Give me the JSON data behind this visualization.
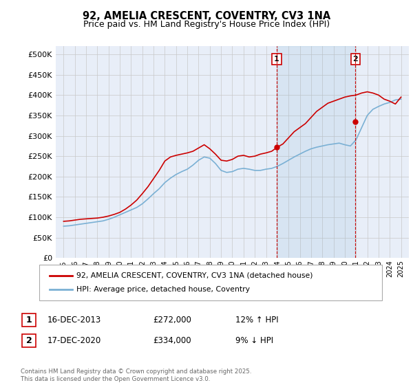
{
  "title": "92, AMELIA CRESCENT, COVENTRY, CV3 1NA",
  "subtitle": "Price paid vs. HM Land Registry's House Price Index (HPI)",
  "legend_line1": "92, AMELIA CRESCENT, COVENTRY, CV3 1NA (detached house)",
  "legend_line2": "HPI: Average price, detached house, Coventry",
  "footnote": "Contains HM Land Registry data © Crown copyright and database right 2025.\nThis data is licensed under the Open Government Licence v3.0.",
  "marker1_date": "16-DEC-2013",
  "marker1_price": "£272,000",
  "marker1_hpi": "12% ↑ HPI",
  "marker2_date": "17-DEC-2020",
  "marker2_price": "£334,000",
  "marker2_hpi": "9% ↓ HPI",
  "red_color": "#cc0000",
  "blue_color": "#7ab0d4",
  "bg_color": "#e8eef8",
  "grid_color": "#c8c8c8",
  "ylim": [
    0,
    520000
  ],
  "yticks": [
    0,
    50000,
    100000,
    150000,
    200000,
    250000,
    300000,
    350000,
    400000,
    450000,
    500000
  ],
  "hpi_line": {
    "x": [
      1995.0,
      1995.5,
      1996.0,
      1996.5,
      1997.0,
      1997.5,
      1998.0,
      1998.5,
      1999.0,
      1999.5,
      2000.0,
      2000.5,
      2001.0,
      2001.5,
      2002.0,
      2002.5,
      2003.0,
      2003.5,
      2004.0,
      2004.5,
      2005.0,
      2005.5,
      2006.0,
      2006.5,
      2007.0,
      2007.5,
      2008.0,
      2008.5,
      2009.0,
      2009.5,
      2010.0,
      2010.5,
      2011.0,
      2011.5,
      2012.0,
      2012.5,
      2013.0,
      2013.5,
      2014.0,
      2014.5,
      2015.0,
      2015.5,
      2016.0,
      2016.5,
      2017.0,
      2017.5,
      2018.0,
      2018.5,
      2019.0,
      2019.5,
      2020.0,
      2020.5,
      2021.0,
      2021.5,
      2022.0,
      2022.5,
      2023.0,
      2023.5,
      2024.0,
      2024.5,
      2025.0
    ],
    "y": [
      78000,
      79000,
      81000,
      83000,
      85000,
      87000,
      89000,
      91000,
      95000,
      100000,
      106000,
      112000,
      118000,
      124000,
      133000,
      145000,
      158000,
      170000,
      185000,
      196000,
      205000,
      212000,
      218000,
      228000,
      240000,
      248000,
      245000,
      232000,
      215000,
      210000,
      212000,
      218000,
      220000,
      218000,
      215000,
      215000,
      218000,
      220000,
      225000,
      232000,
      240000,
      248000,
      255000,
      262000,
      268000,
      272000,
      275000,
      278000,
      280000,
      282000,
      278000,
      275000,
      290000,
      320000,
      350000,
      365000,
      372000,
      378000,
      382000,
      388000,
      390000
    ]
  },
  "red_line": {
    "x": [
      1995.0,
      1995.5,
      1996.0,
      1996.5,
      1997.0,
      1997.5,
      1998.0,
      1998.5,
      1999.0,
      1999.5,
      2000.0,
      2000.5,
      2001.0,
      2001.5,
      2002.0,
      2002.5,
      2003.0,
      2003.5,
      2004.0,
      2004.5,
      2005.0,
      2005.5,
      2006.0,
      2006.5,
      2007.0,
      2007.5,
      2008.0,
      2008.5,
      2009.0,
      2009.5,
      2010.0,
      2010.5,
      2011.0,
      2011.5,
      2012.0,
      2012.5,
      2013.0,
      2013.5,
      2014.0,
      2014.5,
      2015.0,
      2015.5,
      2016.0,
      2016.5,
      2017.0,
      2017.5,
      2018.0,
      2018.5,
      2019.0,
      2019.5,
      2020.0,
      2020.5,
      2021.0,
      2021.5,
      2022.0,
      2022.5,
      2023.0,
      2023.5,
      2024.0,
      2024.5,
      2025.0
    ],
    "y": [
      90000,
      91000,
      93000,
      95000,
      96000,
      97000,
      98000,
      100000,
      103000,
      107000,
      112000,
      120000,
      130000,
      142000,
      158000,
      175000,
      195000,
      215000,
      238000,
      248000,
      252000,
      255000,
      258000,
      262000,
      270000,
      278000,
      268000,
      255000,
      240000,
      238000,
      242000,
      250000,
      252000,
      248000,
      250000,
      255000,
      258000,
      262000,
      272000,
      280000,
      295000,
      310000,
      320000,
      330000,
      345000,
      360000,
      370000,
      380000,
      385000,
      390000,
      395000,
      398000,
      400000,
      405000,
      408000,
      405000,
      400000,
      390000,
      385000,
      378000,
      395000
    ]
  },
  "marker1_x": 2013.95,
  "marker2_x": 2020.95,
  "marker1_price_val": 272000,
  "marker2_price_val": 334000
}
